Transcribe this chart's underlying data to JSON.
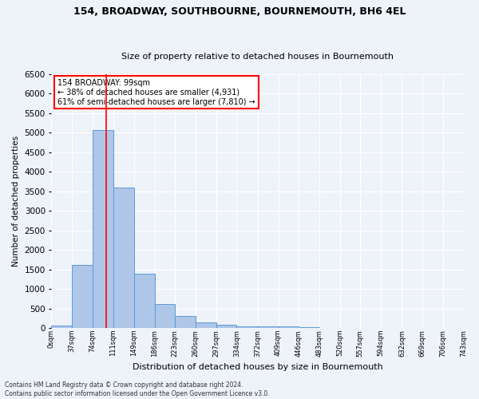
{
  "title_line1": "154, BROADWAY, SOUTHBOURNE, BOURNEMOUTH, BH6 4EL",
  "title_line2": "Size of property relative to detached houses in Bournemouth",
  "xlabel": "Distribution of detached houses by size in Bournemouth",
  "ylabel": "Number of detached properties",
  "bar_color": "#aec6e8",
  "bar_edge_color": "#5b9bd5",
  "annotation_box_text": "154 BROADWAY: 99sqm\n← 38% of detached houses are smaller (4,931)\n61% of semi-detached houses are larger (7,810) →",
  "annotation_box_color": "white",
  "annotation_box_edge_color": "red",
  "vline_color": "red",
  "vline_x": 99,
  "bin_edges": [
    0,
    37,
    74,
    111,
    149,
    186,
    223,
    260,
    297,
    334,
    372,
    409,
    446,
    483,
    520,
    557,
    594,
    632,
    669,
    706,
    743
  ],
  "bar_heights": [
    75,
    1625,
    5075,
    3600,
    1400,
    620,
    310,
    145,
    90,
    55,
    50,
    40,
    30,
    15,
    10,
    8,
    5,
    4,
    3,
    3
  ],
  "ylim": [
    0,
    6500
  ],
  "yticks": [
    0,
    500,
    1000,
    1500,
    2000,
    2500,
    3000,
    3500,
    4000,
    4500,
    5000,
    5500,
    6000,
    6500
  ],
  "footer_line1": "Contains HM Land Registry data © Crown copyright and database right 2024.",
  "footer_line2": "Contains public sector information licensed under the Open Government Licence v3.0.",
  "bg_color": "#eef2f9",
  "plot_bg_color": "#eef2f9",
  "title_fontsize": 9,
  "subtitle_fontsize": 8,
  "ylabel_fontsize": 7.5,
  "xlabel_fontsize": 8,
  "ytick_fontsize": 7.5,
  "xtick_fontsize": 6,
  "footer_fontsize": 5.5,
  "annot_fontsize": 7
}
